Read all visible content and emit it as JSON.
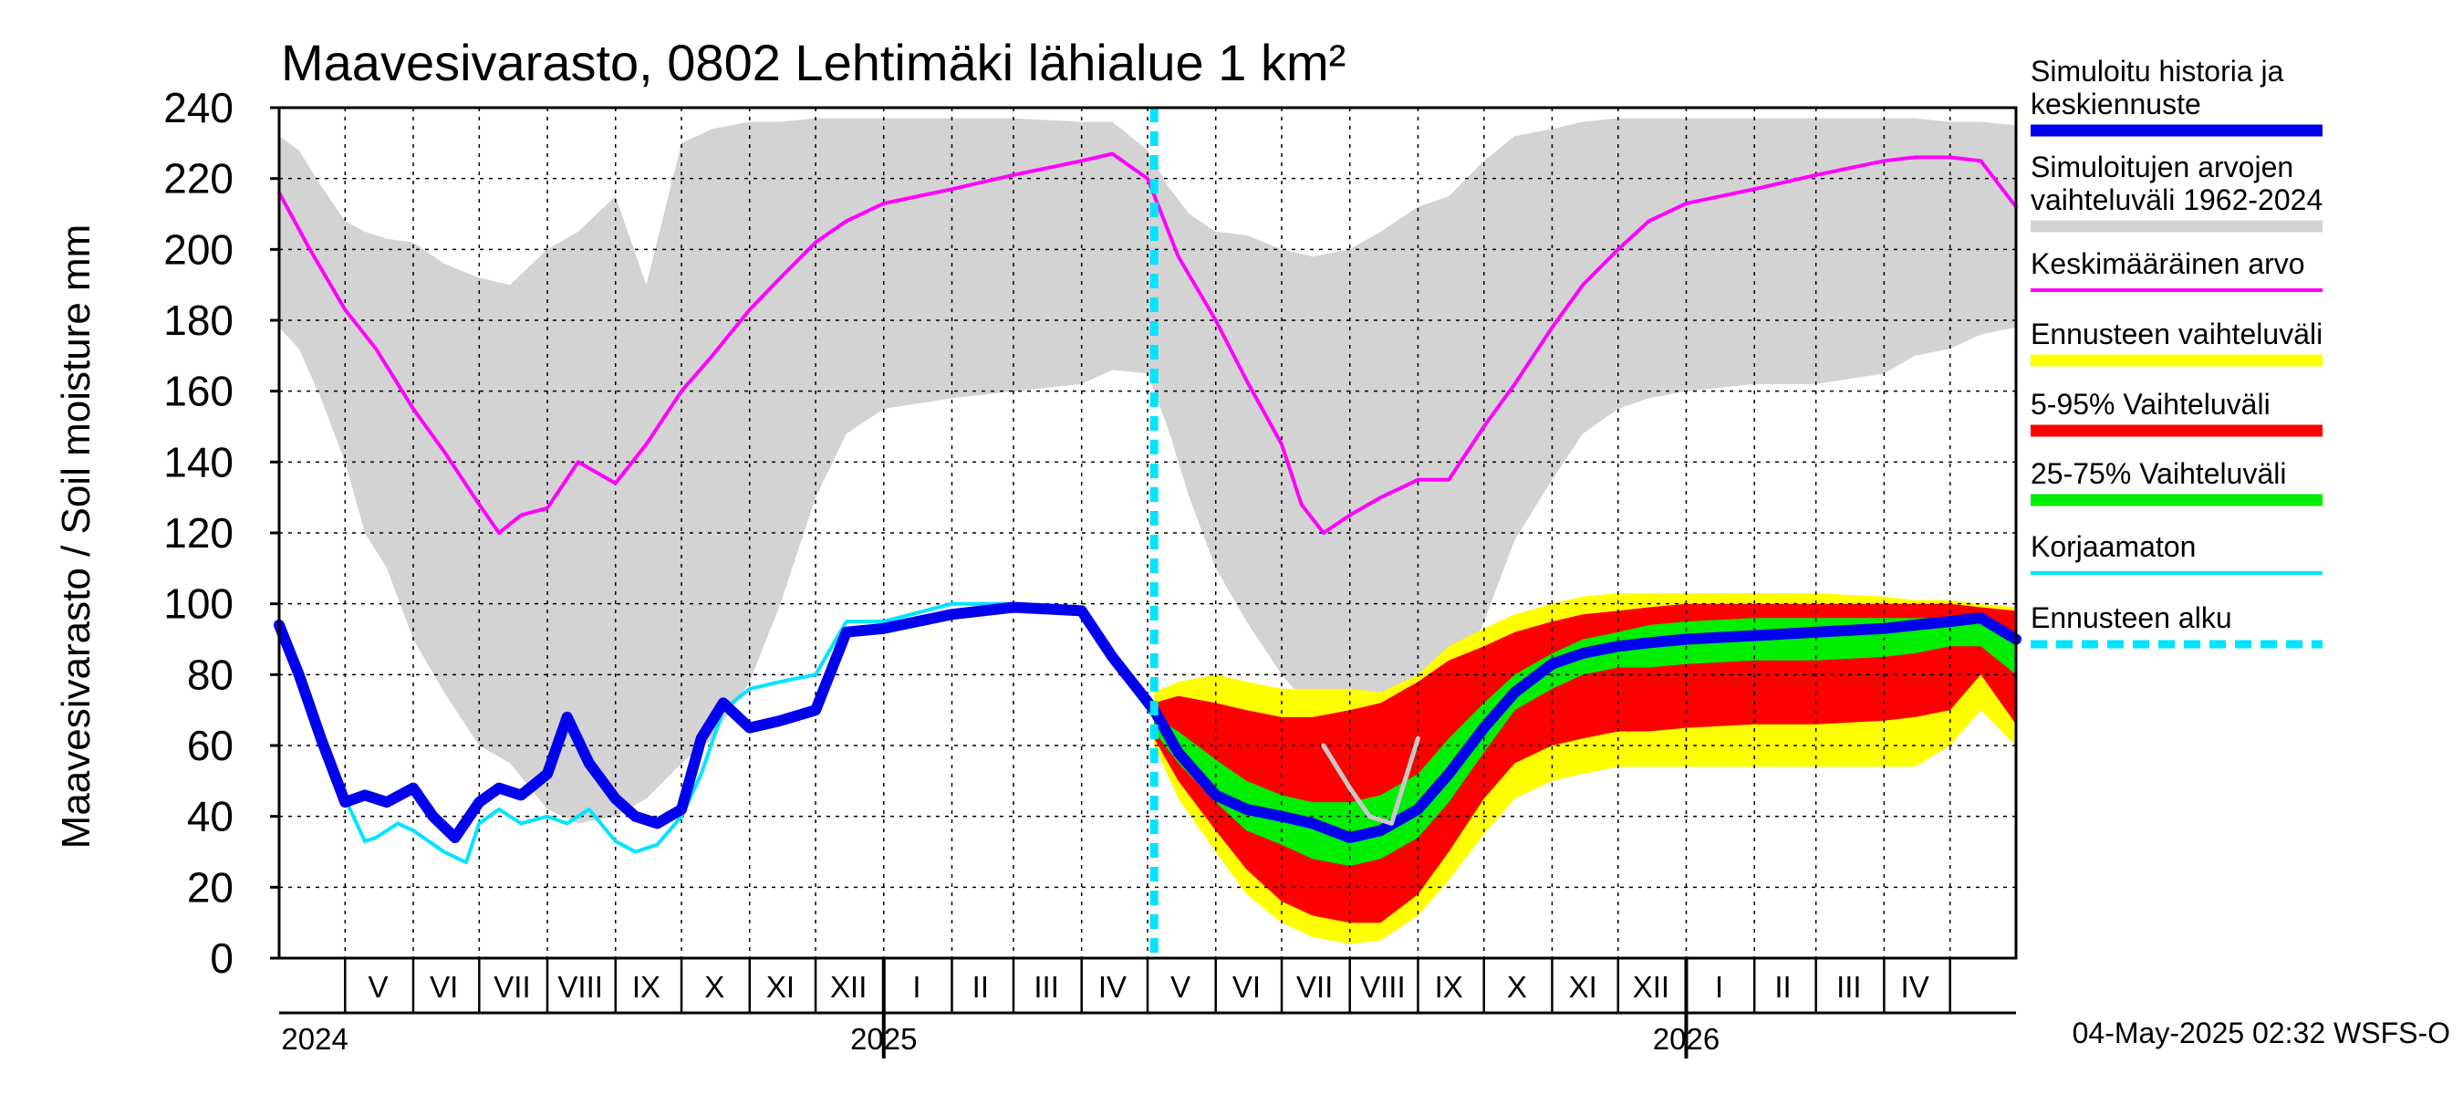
{
  "chart_data": {
    "type": "area",
    "title": "Maavesivarasto, 0802 Lehtimäki lähialue 1 km²",
    "ylabel": "Maavesivarasto / Soil moisture   mm",
    "ylim": [
      0,
      240
    ],
    "yticks": [
      0,
      20,
      40,
      60,
      80,
      100,
      120,
      140,
      160,
      180,
      200,
      220,
      240
    ],
    "xlim": [
      "2024-04-01",
      "2026-05-31"
    ],
    "forecast_start": "2025-05-04",
    "grid": true,
    "legend_position": "right",
    "month_labels": [
      {
        "label": "V",
        "date": "2024-05-16"
      },
      {
        "label": "VI",
        "date": "2024-06-15"
      },
      {
        "label": "VII",
        "date": "2024-07-16"
      },
      {
        "label": "VIII",
        "date": "2024-08-16"
      },
      {
        "label": "IX",
        "date": "2024-09-15"
      },
      {
        "label": "X",
        "date": "2024-10-16"
      },
      {
        "label": "XI",
        "date": "2024-11-15"
      },
      {
        "label": "XII",
        "date": "2024-12-16"
      },
      {
        "label": "I",
        "date": "2025-01-16"
      },
      {
        "label": "II",
        "date": "2025-02-14"
      },
      {
        "label": "III",
        "date": "2025-03-16"
      },
      {
        "label": "IV",
        "date": "2025-04-15"
      },
      {
        "label": "V",
        "date": "2025-05-16"
      },
      {
        "label": "VI",
        "date": "2025-06-15"
      },
      {
        "label": "VII",
        "date": "2025-07-16"
      },
      {
        "label": "VIII",
        "date": "2025-08-16"
      },
      {
        "label": "IX",
        "date": "2025-09-15"
      },
      {
        "label": "X",
        "date": "2025-10-16"
      },
      {
        "label": "XI",
        "date": "2025-11-15"
      },
      {
        "label": "XII",
        "date": "2025-12-16"
      },
      {
        "label": "I",
        "date": "2026-01-16"
      },
      {
        "label": "II",
        "date": "2026-02-14"
      },
      {
        "label": "III",
        "date": "2026-03-16"
      },
      {
        "label": "IV",
        "date": "2026-04-15"
      }
    ],
    "month_boundaries": [
      "2024-05-01",
      "2024-06-01",
      "2024-07-01",
      "2024-08-01",
      "2024-09-01",
      "2024-10-01",
      "2024-11-01",
      "2024-12-01",
      "2025-01-01",
      "2025-02-01",
      "2025-03-01",
      "2025-04-01",
      "2025-05-01",
      "2025-06-01",
      "2025-07-01",
      "2025-08-01",
      "2025-09-01",
      "2025-10-01",
      "2025-11-01",
      "2025-12-01",
      "2026-01-01",
      "2026-02-01",
      "2026-03-01",
      "2026-04-01",
      "2026-05-01"
    ],
    "year_labels": [
      {
        "label": "2024",
        "date": "2024-04-02"
      },
      {
        "label": "2025",
        "date": "2025-01-01"
      },
      {
        "label": "2026",
        "date": "2026-01-01"
      }
    ],
    "series": [
      {
        "name": "Simuloitujen arvojen vaihteluväli 1962-2024",
        "kind": "band",
        "color": "#d3d3d3",
        "x": [
          "2024-04-01",
          "2024-04-10",
          "2024-04-20",
          "2024-05-01",
          "2024-05-10",
          "2024-05-20",
          "2024-06-01",
          "2024-06-15",
          "2024-07-01",
          "2024-07-15",
          "2024-08-01",
          "2024-08-15",
          "2024-09-01",
          "2024-09-15",
          "2024-10-01",
          "2024-10-15",
          "2024-11-01",
          "2024-11-15",
          "2024-12-01",
          "2024-12-15",
          "2025-01-01",
          "2025-02-01",
          "2025-03-01",
          "2025-04-01",
          "2025-04-15",
          "2025-05-01",
          "2025-05-10",
          "2025-05-20",
          "2025-06-01",
          "2025-06-15",
          "2025-07-01",
          "2025-07-15",
          "2025-08-01",
          "2025-08-15",
          "2025-09-01",
          "2025-09-15",
          "2025-10-01",
          "2025-10-15",
          "2025-11-01",
          "2025-11-15",
          "2025-12-01",
          "2025-12-15",
          "2026-01-01",
          "2026-02-01",
          "2026-03-01",
          "2026-04-01",
          "2026-04-15",
          "2026-05-01",
          "2026-05-15",
          "2026-05-31"
        ],
        "low": [
          178,
          172,
          158,
          140,
          120,
          110,
          90,
          75,
          60,
          55,
          42,
          38,
          40,
          45,
          55,
          62,
          78,
          100,
          130,
          148,
          155,
          158,
          160,
          162,
          166,
          165,
          150,
          130,
          110,
          95,
          80,
          70,
          62,
          58,
          60,
          70,
          95,
          118,
          135,
          148,
          155,
          158,
          160,
          162,
          162,
          165,
          170,
          172,
          176,
          178
        ],
        "high": [
          232,
          228,
          218,
          208,
          205,
          203,
          202,
          196,
          192,
          190,
          200,
          205,
          215,
          190,
          230,
          234,
          236,
          236,
          237,
          237,
          237,
          237,
          237,
          236,
          236,
          228,
          218,
          210,
          205,
          204,
          200,
          198,
          200,
          205,
          212,
          215,
          225,
          232,
          234,
          236,
          237,
          237,
          237,
          237,
          237,
          237,
          237,
          236,
          236,
          235
        ]
      },
      {
        "name": "Keskimääräinen arvo",
        "kind": "line",
        "color": "#ff00ff",
        "x": [
          "2024-04-01",
          "2024-04-15",
          "2024-05-01",
          "2024-05-15",
          "2024-06-01",
          "2024-06-15",
          "2024-07-01",
          "2024-07-10",
          "2024-07-20",
          "2024-08-01",
          "2024-08-15",
          "2024-09-01",
          "2024-09-15",
          "2024-10-01",
          "2024-10-15",
          "2024-11-01",
          "2024-11-15",
          "2024-12-01",
          "2024-12-15",
          "2025-01-01",
          "2025-02-01",
          "2025-03-01",
          "2025-04-01",
          "2025-04-15",
          "2025-05-01",
          "2025-05-15",
          "2025-06-01",
          "2025-06-15",
          "2025-07-01",
          "2025-07-10",
          "2025-07-20",
          "2025-08-01",
          "2025-08-15",
          "2025-09-01",
          "2025-09-15",
          "2025-10-01",
          "2025-10-15",
          "2025-11-01",
          "2025-11-15",
          "2025-12-01",
          "2025-12-15",
          "2026-01-01",
          "2026-02-01",
          "2026-03-01",
          "2026-04-01",
          "2026-04-15",
          "2026-05-01",
          "2026-05-15",
          "2026-05-31"
        ],
        "y": [
          216,
          200,
          183,
          172,
          155,
          143,
          128,
          120,
          125,
          127,
          140,
          134,
          145,
          160,
          170,
          183,
          192,
          202,
          208,
          213,
          217,
          221,
          225,
          227,
          220,
          198,
          180,
          163,
          145,
          128,
          120,
          125,
          130,
          135,
          135,
          150,
          162,
          178,
          190,
          200,
          208,
          213,
          217,
          221,
          225,
          226,
          226,
          225,
          212
        ]
      },
      {
        "name": "Ennusteen vaihteluväli",
        "kind": "band",
        "color": "#ffff00",
        "x": [
          "2025-05-04",
          "2025-05-15",
          "2025-06-01",
          "2025-06-15",
          "2025-07-01",
          "2025-07-15",
          "2025-08-01",
          "2025-08-15",
          "2025-09-01",
          "2025-09-15",
          "2025-10-01",
          "2025-10-15",
          "2025-11-01",
          "2025-11-15",
          "2025-12-01",
          "2025-12-15",
          "2026-01-01",
          "2026-02-01",
          "2026-03-01",
          "2026-04-01",
          "2026-04-15",
          "2026-05-01",
          "2026-05-15",
          "2026-05-31"
        ],
        "low": [
          60,
          45,
          30,
          18,
          10,
          6,
          4,
          5,
          12,
          22,
          35,
          45,
          50,
          52,
          54,
          54,
          54,
          54,
          54,
          54,
          54,
          60,
          70,
          60
        ],
        "high": [
          75,
          78,
          80,
          78,
          76,
          76,
          76,
          75,
          80,
          88,
          93,
          97,
          100,
          102,
          103,
          103,
          103,
          103,
          103,
          102,
          101,
          101,
          100,
          99
        ]
      },
      {
        "name": "5-95% Vaihteluväli",
        "kind": "band",
        "color": "#ff0000",
        "x": [
          "2025-05-04",
          "2025-05-15",
          "2025-06-01",
          "2025-06-15",
          "2025-07-01",
          "2025-07-15",
          "2025-08-01",
          "2025-08-15",
          "2025-09-01",
          "2025-09-15",
          "2025-10-01",
          "2025-10-15",
          "2025-11-01",
          "2025-11-15",
          "2025-12-01",
          "2025-12-15",
          "2026-01-01",
          "2026-02-01",
          "2026-03-01",
          "2026-04-01",
          "2026-04-15",
          "2026-05-01",
          "2026-05-15",
          "2026-05-31"
        ],
        "low": [
          62,
          50,
          36,
          25,
          16,
          12,
          10,
          10,
          18,
          30,
          45,
          55,
          60,
          62,
          64,
          64,
          65,
          66,
          66,
          67,
          68,
          70,
          80,
          66
        ],
        "high": [
          72,
          74,
          72,
          70,
          68,
          68,
          70,
          72,
          78,
          84,
          88,
          92,
          95,
          97,
          98,
          99,
          100,
          100,
          100,
          100,
          100,
          100,
          99,
          98
        ]
      },
      {
        "name": "25-75% Vaihteluväli",
        "kind": "band",
        "color": "#00ee00",
        "x": [
          "2025-05-04",
          "2025-05-15",
          "2025-06-01",
          "2025-06-15",
          "2025-07-01",
          "2025-07-15",
          "2025-08-01",
          "2025-08-15",
          "2025-09-01",
          "2025-09-15",
          "2025-10-01",
          "2025-10-15",
          "2025-11-01",
          "2025-11-15",
          "2025-12-01",
          "2025-12-15",
          "2026-01-01",
          "2026-02-01",
          "2026-03-01",
          "2026-04-01",
          "2026-04-15",
          "2026-05-01",
          "2026-05-15",
          "2026-05-31"
        ],
        "low": [
          64,
          55,
          44,
          36,
          32,
          28,
          26,
          28,
          34,
          44,
          58,
          70,
          76,
          80,
          82,
          82,
          83,
          84,
          84,
          85,
          86,
          88,
          88,
          80
        ],
        "high": [
          68,
          64,
          56,
          50,
          46,
          44,
          44,
          46,
          52,
          62,
          72,
          80,
          86,
          90,
          92,
          94,
          95,
          96,
          96,
          96,
          96,
          96,
          95,
          92
        ]
      },
      {
        "name": "Korjaamaton",
        "kind": "line",
        "color": "#00e5ff",
        "x": [
          "2024-04-01",
          "2024-04-10",
          "2024-04-20",
          "2024-05-01",
          "2024-05-10",
          "2024-05-15",
          "2024-05-25",
          "2024-06-01",
          "2024-06-15",
          "2024-06-25",
          "2024-07-01",
          "2024-07-10",
          "2024-07-20",
          "2024-08-01",
          "2024-08-10",
          "2024-08-20",
          "2024-09-01",
          "2024-09-10",
          "2024-09-20",
          "2024-10-01",
          "2024-10-10",
          "2024-10-20",
          "2024-11-01",
          "2024-11-15",
          "2024-12-01",
          "2024-12-15",
          "2025-01-01",
          "2025-02-01",
          "2025-03-01",
          "2025-04-01",
          "2025-04-15",
          "2025-05-04"
        ],
        "y": [
          93,
          80,
          62,
          45,
          33,
          34,
          38,
          36,
          30,
          27,
          38,
          42,
          38,
          40,
          38,
          42,
          33,
          30,
          32,
          40,
          52,
          70,
          76,
          78,
          80,
          95,
          95,
          100,
          100,
          98,
          84,
          68
        ]
      },
      {
        "name": "Simuloitu historia ja keskiennuste",
        "kind": "line",
        "color": "#0000ee",
        "x": [
          "2024-04-01",
          "2024-04-10",
          "2024-04-20",
          "2024-05-01",
          "2024-05-10",
          "2024-05-20",
          "2024-06-01",
          "2024-06-10",
          "2024-06-20",
          "2024-07-01",
          "2024-07-10",
          "2024-07-20",
          "2024-08-01",
          "2024-08-10",
          "2024-08-20",
          "2024-09-01",
          "2024-09-10",
          "2024-09-20",
          "2024-10-01",
          "2024-10-10",
          "2024-10-20",
          "2024-11-01",
          "2024-11-15",
          "2024-12-01",
          "2024-12-15",
          "2025-01-01",
          "2025-02-01",
          "2025-03-01",
          "2025-04-01",
          "2025-04-15",
          "2025-05-04",
          "2025-05-15",
          "2025-06-01",
          "2025-06-15",
          "2025-07-01",
          "2025-07-15",
          "2025-08-01",
          "2025-08-15",
          "2025-09-01",
          "2025-09-15",
          "2025-10-01",
          "2025-10-15",
          "2025-11-01",
          "2025-11-15",
          "2025-12-01",
          "2025-12-15",
          "2026-01-01",
          "2026-02-01",
          "2026-03-01",
          "2026-04-01",
          "2026-04-15",
          "2026-05-01",
          "2026-05-15",
          "2026-05-31"
        ],
        "y": [
          94,
          80,
          62,
          44,
          46,
          44,
          48,
          40,
          34,
          44,
          48,
          46,
          52,
          68,
          55,
          45,
          40,
          38,
          42,
          62,
          72,
          65,
          67,
          70,
          92,
          93,
          97,
          99,
          98,
          85,
          70,
          58,
          46,
          42,
          40,
          38,
          34,
          36,
          42,
          52,
          65,
          75,
          83,
          86,
          88,
          89,
          90,
          91,
          92,
          93,
          94,
          95,
          96,
          90
        ]
      },
      {
        "name": "",
        "kind": "line",
        "color": "#c8c8c8",
        "x": [
          "2025-07-20",
          "2025-08-01",
          "2025-08-10",
          "2025-08-20",
          "2025-09-01"
        ],
        "y": [
          60,
          48,
          40,
          38,
          62
        ]
      }
    ],
    "legend": [
      {
        "text": "Simuloitu historia ja\nkeskiennuste",
        "color": "#0000ee",
        "style": "solid"
      },
      {
        "text": "Simuloitujen arvojen\nvaihteluväli 1962-2024",
        "color": "#d3d3d3",
        "style": "solid"
      },
      {
        "text": "Keskimääräinen arvo",
        "color": "#ff00ff",
        "style": "thin"
      },
      {
        "text": "Ennusteen vaihteluväli",
        "color": "#ffff00",
        "style": "solid"
      },
      {
        "text": "5-95% Vaihteluväli",
        "color": "#ff0000",
        "style": "solid"
      },
      {
        "text": "25-75% Vaihteluväli",
        "color": "#00ee00",
        "style": "solid"
      },
      {
        "text": "Korjaamaton",
        "color": "#00e5ff",
        "style": "thin"
      },
      {
        "text": "Ennusteen alku",
        "color": "#00e5ff",
        "style": "dashed"
      }
    ],
    "footer": "04-May-2025 02:32 WSFS-O"
  }
}
